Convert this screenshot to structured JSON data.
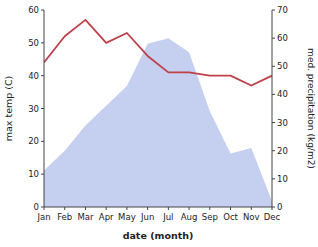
{
  "chart_data": {
    "type": "line",
    "categories": [
      "Jan",
      "Feb",
      "Mar",
      "Apr",
      "May",
      "Jun",
      "Jul",
      "Aug",
      "Sep",
      "Oct",
      "Nov",
      "Dec"
    ],
    "xlabel": "date (month)",
    "ylabel": "max temp (C)",
    "y2label": "med. precipitation (kg/m2)",
    "series": [
      {
        "type": "area",
        "axis": "y2",
        "color": "#c5cff0",
        "values": [
          13,
          20,
          29,
          36,
          43,
          58,
          60,
          55,
          34,
          19,
          21,
          2
        ]
      },
      {
        "type": "line",
        "color": "#c0404a",
        "values": [
          44,
          52,
          57,
          50,
          53,
          46,
          41,
          41,
          40,
          40,
          37,
          40
        ]
      }
    ],
    "ylim": [
      0,
      60
    ],
    "yticks": [
      0,
      10,
      20,
      30,
      40,
      50,
      60
    ],
    "y2lim": [
      0,
      70
    ],
    "y2ticks": [
      0,
      10,
      20,
      30,
      40,
      50,
      60,
      70
    ],
    "grid": false
  }
}
